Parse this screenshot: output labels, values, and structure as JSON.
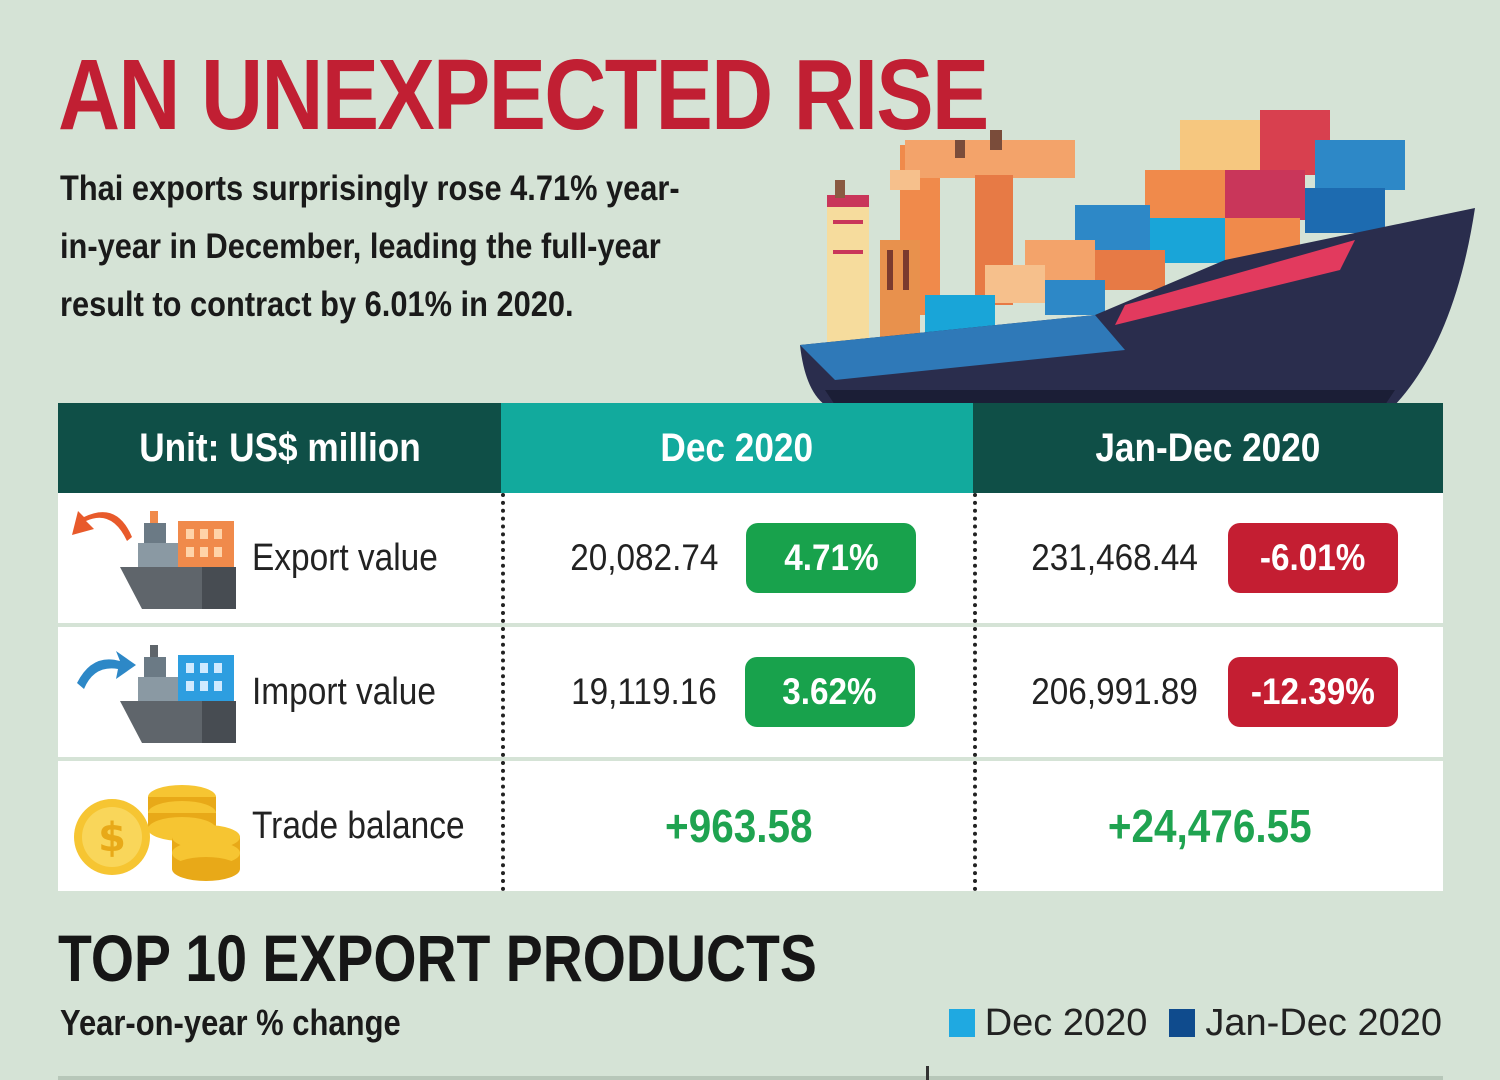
{
  "headline": "AN UNEXPECTED RISE",
  "subtitle": "Thai exports surprisingly rose 4.71% year-in-year in December, leading the full-year result to contract by 6.01% in 2020.",
  "table": {
    "headers": {
      "unit": "Unit: US$ million",
      "dec": "Dec 2020",
      "year": "Jan-Dec 2020"
    },
    "rows": [
      {
        "label": "Export value",
        "icon": "export-ship-icon",
        "dec_value": "20,082.74",
        "dec_change": "4.71%",
        "year_value": "231,468.44",
        "year_change": "-6.01%"
      },
      {
        "label": "Import value",
        "icon": "import-ship-icon",
        "dec_value": "19,119.16",
        "dec_change": "3.62%",
        "year_value": "206,991.89",
        "year_change": "-12.39%"
      }
    ],
    "balance": {
      "label": "Trade balance",
      "icon": "gold-coins-icon",
      "dec_value": "+963.58",
      "year_value": "+24,476.55"
    }
  },
  "section": {
    "title": "TOP 10 EXPORT PRODUCTS",
    "subtitle": "Year-on-year % change",
    "legend": [
      {
        "label": "Dec 2020",
        "color": "#1fa9e1"
      },
      {
        "label": "Jan-Dec 2020",
        "color": "#0f4b8d"
      }
    ]
  },
  "colors": {
    "headline": "#c11f33",
    "background": "#d5e3d6",
    "header_dark": "#0f4f47",
    "header_teal": "#12aa9d",
    "positive": "#18a24c",
    "negative": "#c41e32",
    "balance_text": "#1fa350"
  },
  "illustration": "cargo-ship-illustration"
}
